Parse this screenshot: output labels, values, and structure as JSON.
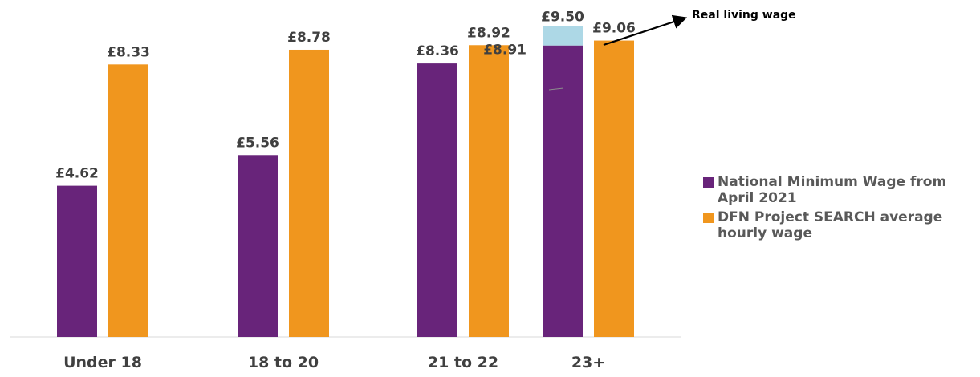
{
  "chart_data": {
    "type": "bar",
    "categories": [
      "Under 18",
      "18 to 20",
      "21 to 22",
      "23+"
    ],
    "series": [
      {
        "name": "National Minimum Wage from April 2021",
        "values": [
          4.62,
          5.56,
          8.36,
          8.91
        ],
        "labels": [
          "£4.62",
          "£5.56",
          "£8.36",
          "£8.91"
        ],
        "color": "#68247a"
      },
      {
        "name": "DFN Project SEARCH average hourly wage",
        "values": [
          8.33,
          8.78,
          8.92,
          9.06
        ],
        "labels": [
          "£8.33",
          "£8.78",
          "£8.92",
          "£9.06"
        ],
        "color": "#f0961e"
      }
    ],
    "stacked_extra": {
      "category": "23+",
      "value_top": 9.5,
      "label": "£9.50",
      "color": "#add8e6"
    },
    "annotation": "Real living wage",
    "ylim": [
      0,
      10.3
    ],
    "grid": false,
    "legend_position": "right"
  }
}
